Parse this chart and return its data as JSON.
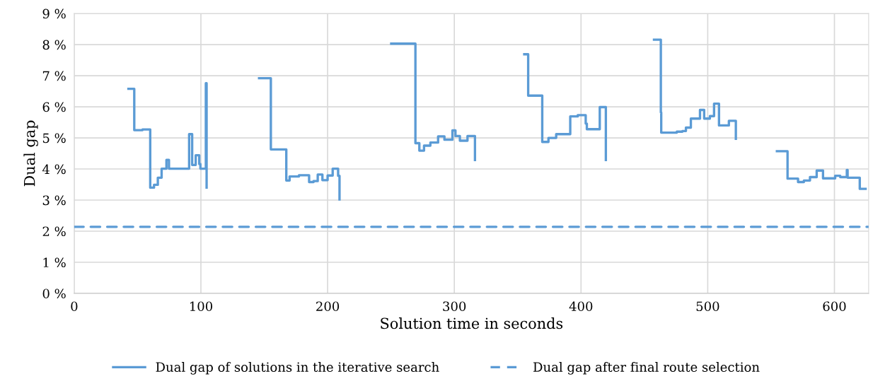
{
  "chart_data": {
    "type": "line",
    "xlabel": "Solution time in seconds",
    "ylabel": "Dual gap",
    "xlim": [
      0,
      627
    ],
    "xticks": [
      0,
      100,
      200,
      300,
      400,
      500,
      600
    ],
    "ylim": [
      0,
      9
    ],
    "yticks": [
      {
        "value": 0,
        "label": "0 %"
      },
      {
        "value": 1,
        "label": "1 %"
      },
      {
        "value": 2,
        "label": "2 %"
      },
      {
        "value": 3,
        "label": "3 %"
      },
      {
        "value": 4,
        "label": "4 %"
      },
      {
        "value": 5,
        "label": "5 %"
      },
      {
        "value": 6,
        "label": "6 %"
      },
      {
        "value": 7,
        "label": "7 %"
      },
      {
        "value": 8,
        "label": "8 %"
      },
      {
        "value": 9,
        "label": "9 %"
      }
    ],
    "grid": true,
    "legend": "bottom",
    "marker": "none",
    "series": [
      {
        "name": "Dual gap of solutions in the iterative search",
        "color": "#5b9bd5",
        "line_style": "solid",
        "x": [
          42.8,
          47.4,
          47.4,
          53.9,
          53.9,
          60,
          60,
          63,
          63,
          66,
          66,
          69,
          69,
          72.8,
          72.8,
          74.8,
          74.8,
          90.7,
          90.7,
          93.1,
          93.1,
          95.9,
          95.9,
          98.7,
          98.7,
          99.6,
          99.6,
          103.9,
          103.9,
          104.5,
          104.5,
          125,
          145.9,
          155.2,
          155.2,
          167.4,
          167.4,
          170,
          170,
          177.4,
          177.4,
          185.4,
          185.4,
          188.9,
          188.9,
          192.2,
          192.2,
          195.9,
          195.9,
          200,
          200,
          204,
          204,
          208.3,
          208.3,
          209.4,
          209.4,
          230,
          250.2,
          269.3,
          269.3,
          272.4,
          272.4,
          276.1,
          276.1,
          281.1,
          281.1,
          287.2,
          287.2,
          292.2,
          292.2,
          298.5,
          298.5,
          300.9,
          300.9,
          304.4,
          304.4,
          310.4,
          310.4,
          316.3,
          316.3,
          335,
          355.2,
          358.3,
          358.3,
          369.4,
          369.4,
          374.3,
          374.3,
          380.4,
          380.4,
          391.5,
          391.5,
          397.4,
          397.4,
          403.7,
          403.7,
          404.6,
          404.6,
          414.8,
          414.8,
          419.6,
          419.6,
          440,
          457.6,
          463,
          463,
          463.3,
          463.3,
          475.6,
          475.6,
          480,
          480,
          482.8,
          482.8,
          486.7,
          486.7,
          493.9,
          493.9,
          497.2,
          497.2,
          501.7,
          501.7,
          505,
          505,
          508.9,
          508.9,
          516.7,
          516.7,
          522.2,
          522.2,
          540,
          554.6,
          563,
          563,
          571.3,
          571.3,
          575.9,
          575.9,
          580.7,
          580.7,
          586,
          586,
          591,
          591,
          600.6,
          600.6,
          604.6,
          604.6,
          609.8,
          609.8,
          610.4,
          610.4,
          620,
          620,
          624.6
        ],
        "values": [
          6.58,
          6.58,
          5.25,
          5.25,
          5.27,
          5.27,
          3.4,
          3.4,
          3.49,
          3.49,
          3.72,
          3.72,
          4.01,
          4.01,
          4.29,
          4.29,
          4.01,
          4.01,
          5.12,
          5.12,
          4.13,
          4.13,
          4.44,
          4.44,
          4.16,
          4.16,
          4.01,
          4.01,
          6.76,
          6.76,
          3.4,
          null,
          6.92,
          6.92,
          4.63,
          4.63,
          3.63,
          3.63,
          3.76,
          3.76,
          3.8,
          3.8,
          3.58,
          3.58,
          3.61,
          3.61,
          3.82,
          3.82,
          3.64,
          3.64,
          3.79,
          3.79,
          4.01,
          4.01,
          3.78,
          3.78,
          3.02,
          null,
          8.03,
          8.03,
          4.83,
          4.83,
          4.59,
          4.59,
          4.75,
          4.75,
          4.85,
          4.85,
          5.05,
          5.05,
          4.94,
          4.94,
          5.24,
          5.24,
          5.06,
          5.06,
          4.91,
          4.91,
          5.06,
          5.06,
          4.29,
          null,
          7.69,
          7.69,
          6.36,
          6.36,
          4.87,
          4.87,
          5.0,
          5.0,
          5.12,
          5.12,
          5.69,
          5.69,
          5.73,
          5.73,
          5.46,
          5.46,
          5.28,
          5.28,
          5.99,
          5.99,
          4.29,
          null,
          8.16,
          8.16,
          5.82,
          5.82,
          5.17,
          5.17,
          5.2,
          5.2,
          5.22,
          5.22,
          5.33,
          5.33,
          5.62,
          5.62,
          5.9,
          5.9,
          5.62,
          5.62,
          5.7,
          5.7,
          6.1,
          6.1,
          5.4,
          5.4,
          5.55,
          5.55,
          4.97,
          null,
          4.57,
          4.57,
          3.69,
          3.69,
          3.58,
          3.58,
          3.63,
          3.63,
          3.74,
          3.74,
          3.95,
          3.95,
          3.7,
          3.7,
          3.78,
          3.78,
          3.74,
          3.74,
          3.97,
          3.97,
          3.72,
          3.72,
          3.36,
          3.36
        ]
      },
      {
        "name": "Dual gap after final route selection",
        "color": "#5b9bd5",
        "line_style": "dashed",
        "x": [
          0,
          627
        ],
        "values": [
          2.14,
          2.14
        ]
      }
    ]
  }
}
